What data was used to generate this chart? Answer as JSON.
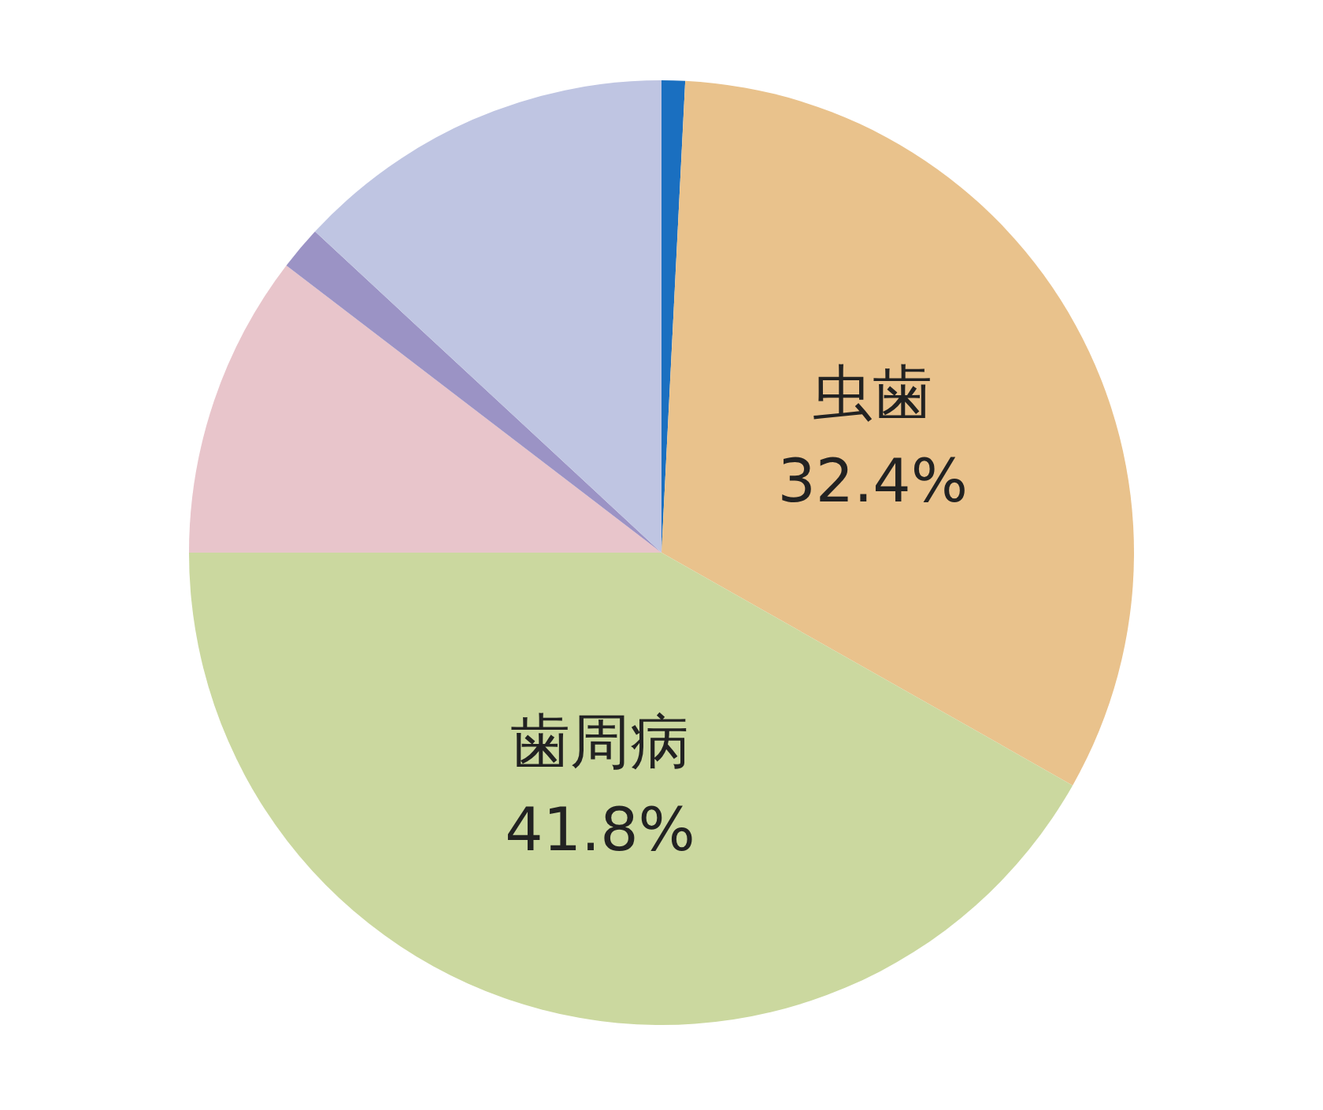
{
  "chart_data": {
    "type": "pie",
    "categories": [
      null,
      "虫歯",
      "歯周病",
      null,
      null,
      null
    ],
    "values": [
      0.8,
      32.4,
      41.8,
      10.4,
      1.5,
      13.1
    ],
    "colors": [
      "#1a6fc0",
      "#e9c28c",
      "#cbd89f",
      "#e8c5cb",
      "#9b93c5",
      "#bfc5e2"
    ],
    "value_labels": [
      null,
      "32.4%",
      "41.8%",
      null,
      null,
      null
    ],
    "legend": false
  }
}
